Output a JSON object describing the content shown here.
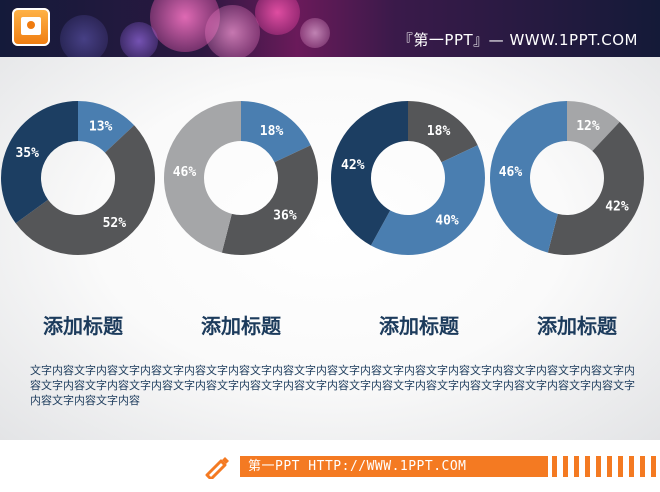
{
  "header": {
    "brand_text": "『第一PPT』— WWW.1PPT.COM",
    "logo_icon": "powerpoint-icon"
  },
  "colors": {
    "navy": "#1c3e62",
    "steel_blue": "#4a7eb0",
    "dark_gray": "#555658",
    "light_gray": "#a5a6a8",
    "heading": "#1c3b5c",
    "accent_orange": "#f47a22"
  },
  "chart_data": [
    {
      "type": "pie",
      "title": "添加标题",
      "slices": [
        {
          "value": 13,
          "label": "13%",
          "color": "#4a7eb0"
        },
        {
          "value": 52,
          "label": "52%",
          "color": "#555658"
        },
        {
          "value": 35,
          "label": "35%",
          "color": "#1c3e62"
        }
      ]
    },
    {
      "type": "pie",
      "title": "添加标题",
      "slices": [
        {
          "value": 18,
          "label": "18%",
          "color": "#4a7eb0"
        },
        {
          "value": 36,
          "label": "36%",
          "color": "#555658"
        },
        {
          "value": 46,
          "label": "46%",
          "color": "#a5a6a8"
        }
      ]
    },
    {
      "type": "pie",
      "title": "添加标题",
      "slices": [
        {
          "value": 18,
          "label": "18%",
          "color": "#555658"
        },
        {
          "value": 40,
          "label": "40%",
          "color": "#4a7eb0"
        },
        {
          "value": 42,
          "label": "42%",
          "color": "#1c3e62"
        }
      ]
    },
    {
      "type": "pie",
      "title": "添加标题",
      "slices": [
        {
          "value": 12,
          "label": "12%",
          "color": "#a5a6a8"
        },
        {
          "value": 42,
          "label": "42%",
          "color": "#555658"
        },
        {
          "value": 46,
          "label": "46%",
          "color": "#4a7eb0"
        }
      ]
    }
  ],
  "body": {
    "text": "文字内容文字内容文字内容文字内容文字内容文字内容文字内容文字内容文字内容文字内容文字内容文字内容文字内容文字内容文字内容文字内容文字内容文字内容文字内容文字内容文字内容文字内容文字内容文字内容文字内容文字内容文字内容文字内容文字内容文字内容"
  },
  "footer": {
    "text": "第一PPT HTTP://WWW.1PPT.COM",
    "icon": "pen-icon"
  }
}
